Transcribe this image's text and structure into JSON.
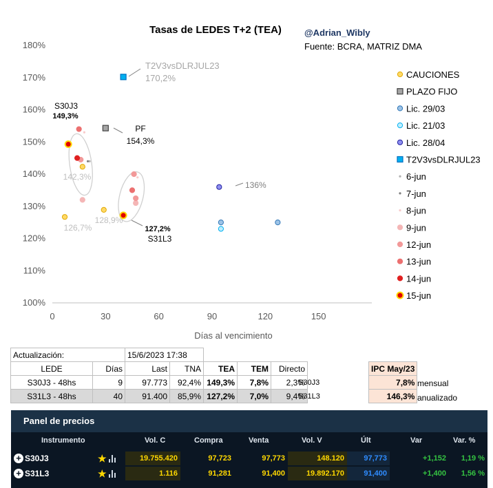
{
  "chart_data": {
    "type": "scatter",
    "title": "Tasas de LEDES T+2 (TEA)",
    "author": "@Adrian_Wibly",
    "source": "Fuente: BCRA, MATRIZ DMA",
    "xlabel": "Días al vencimiento",
    "ylabel": "",
    "xlim": [
      0,
      180
    ],
    "ylim": [
      100,
      180
    ],
    "x_ticks": [
      0,
      30,
      60,
      90,
      120,
      150
    ],
    "y_ticks": [
      100,
      110,
      120,
      130,
      140,
      150,
      160,
      170,
      180
    ],
    "y_tick_format": "%",
    "grid": false,
    "legend_position": "right",
    "series": [
      {
        "name": "CAUCIONES",
        "marker": "circle",
        "color": "#ffd966",
        "stroke": "#e0a800",
        "points": [
          [
            7,
            126.7
          ],
          [
            17,
            142.3
          ],
          [
            29,
            128.9
          ]
        ]
      },
      {
        "name": "PLAZO FIJO",
        "marker": "square",
        "color": "#a6a6a6",
        "stroke": "#404040",
        "points": [
          [
            30,
            154.3
          ]
        ]
      },
      {
        "name": "Lic. 29/03",
        "marker": "circle",
        "color": "#9dc3e6",
        "stroke": "#2e75b6",
        "points": [
          [
            95,
            125
          ],
          [
            127,
            125
          ]
        ]
      },
      {
        "name": "Lic. 21/03",
        "marker": "circle",
        "color": "#bdeeff",
        "stroke": "#00b0f0",
        "points": [
          [
            95,
            123
          ]
        ]
      },
      {
        "name": "Lic. 28/04",
        "marker": "circle",
        "color": "#8f8ff0",
        "stroke": "#2020a0",
        "points": [
          [
            94,
            136
          ]
        ]
      },
      {
        "name": "T2V3vsDLRJUL23",
        "marker": "square",
        "color": "#00b0f0",
        "stroke": "#0070c0",
        "points": [
          [
            40,
            170.2
          ]
        ]
      },
      {
        "name": "6-jun",
        "marker": "dot",
        "color": "#b0b0b0",
        "stroke": "#b0b0b0",
        "points": [
          [
            21,
            144
          ]
        ]
      },
      {
        "name": "7-jun",
        "marker": "dot",
        "color": "#7f7f7f",
        "stroke": "#7f7f7f",
        "points": [
          [
            20,
            144
          ]
        ]
      },
      {
        "name": "8-jun",
        "marker": "dot",
        "color": "#f8cbcb",
        "stroke": "#f8cbcb",
        "points": [
          [
            18,
            153
          ],
          [
            48,
            139
          ]
        ]
      },
      {
        "name": "9-jun",
        "marker": "circle",
        "color": "#f4b6b6",
        "stroke": "#f4b6b6",
        "points": [
          [
            17,
            132
          ],
          [
            47,
            131
          ]
        ]
      },
      {
        "name": "12-jun",
        "marker": "circle",
        "color": "#f29999",
        "stroke": "#f29999",
        "points": [
          [
            16,
            144.5
          ],
          [
            46,
            140
          ],
          [
            47,
            132.5
          ]
        ]
      },
      {
        "name": "13-jun",
        "marker": "circle",
        "color": "#ec7070",
        "stroke": "#ec7070",
        "points": [
          [
            15,
            154
          ],
          [
            45,
            135
          ]
        ]
      },
      {
        "name": "14-jun",
        "marker": "circle",
        "color": "#e02020",
        "stroke": "#e02020",
        "points": [
          [
            14,
            145
          ]
        ]
      },
      {
        "name": "15-jun",
        "marker": "circle",
        "color": "#e00000",
        "stroke": "#ffd800",
        "points": [
          [
            9,
            149.3
          ],
          [
            40,
            127.2
          ]
        ]
      }
    ],
    "annotations": [
      {
        "text": "T2V3vsDLRJUL23",
        "color": "#a6a6a6",
        "size": 13
      },
      {
        "text": "170,2%",
        "color": "#a6a6a6",
        "size": 13
      },
      {
        "text": "S30J3",
        "color": "#000000",
        "size": 12
      },
      {
        "text": "149,3%",
        "color": "#000000",
        "size": 11,
        "bold": true
      },
      {
        "text": "PF",
        "color": "#000000",
        "size": 12
      },
      {
        "text": "154,3%",
        "color": "#000000",
        "size": 12
      },
      {
        "text": "142,3%",
        "color": "#bfbfbf",
        "size": 12
      },
      {
        "text": "136%",
        "color": "#7f7f7f",
        "size": 12
      },
      {
        "text": "126,7%",
        "color": "#bfbfbf",
        "size": 12
      },
      {
        "text": "128,9%",
        "color": "#bfbfbf",
        "size": 12
      },
      {
        "text": "127,2%",
        "color": "#000000",
        "size": 11,
        "bold": true
      },
      {
        "text": "S31L3",
        "color": "#000000",
        "size": 12
      }
    ]
  },
  "table": {
    "updated_label": "Actualización:",
    "updated_value": "15/6/2023 17:38",
    "headers": {
      "lede": "LEDE",
      "dias": "Días",
      "last": "Last",
      "tna": "TNA",
      "tea": "TEA",
      "tem": "TEM",
      "directo": "Directo"
    },
    "rows": [
      {
        "lede": "S30J3 - 48hs",
        "dias": "9",
        "last": "97.773",
        "tna": "92,4%",
        "tea": "149,3%",
        "tem": "7,8%",
        "directo": "2,3%",
        "ticker": "S30J3"
      },
      {
        "lede": "S31L3 - 48hs",
        "dias": "40",
        "last": "91.400",
        "tna": "85,9%",
        "tea": "127,2%",
        "tem": "7,0%",
        "directo": "9,4%",
        "ticker": "S31L3"
      }
    ]
  },
  "ipc": {
    "title": "IPC May/23",
    "monthly": "7,8%",
    "monthly_label": "mensual",
    "annual": "146,3%",
    "annual_label": "anualizado"
  },
  "panel": {
    "title": "Panel de precios",
    "headers": {
      "instrumento": "Instrumento",
      "volc": "Vol. C",
      "compra": "Compra",
      "venta": "Venta",
      "volv": "Vol. V",
      "ult": "Últ",
      "var": "Var",
      "varp": "Var. %"
    },
    "rows": [
      {
        "instrumento": "S30J3",
        "volc": "19.755.420",
        "compra": "97,723",
        "venta": "97,773",
        "volv": "148.120",
        "ult": "97,773",
        "var": "+1,152",
        "varp": "1,19 %"
      },
      {
        "instrumento": "S31L3",
        "volc": "1.116",
        "compra": "91,281",
        "venta": "91,400",
        "volv": "19.892.170",
        "ult": "91,400",
        "var": "+1,400",
        "varp": "1,56 %"
      }
    ],
    "colors": {
      "vol": "#ffd800",
      "compra": "#ffd800",
      "venta": "#ffd800",
      "ult": "#2f8cff",
      "up": "#35c442"
    }
  }
}
